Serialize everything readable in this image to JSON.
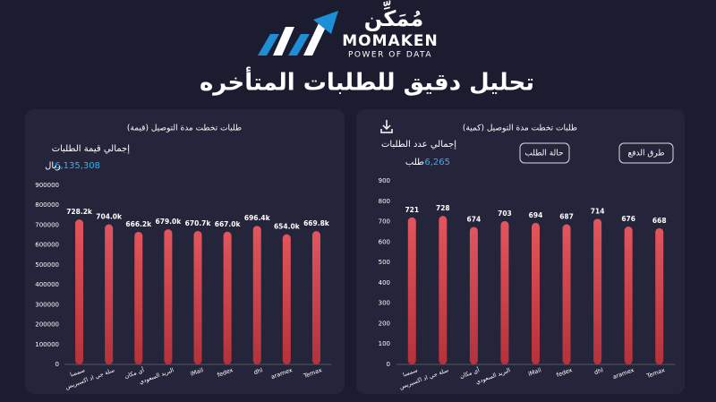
{
  "header": {
    "logo_arabic": "مُمَكِّن",
    "logo_name": "MOMAKEN",
    "logo_tagline": "POWER OF DATA",
    "title": "تحليل دقيق للطلبات المتأخره"
  },
  "chart_data": [
    {
      "type": "bar",
      "title": "طلبات تخطت مدة التوصيل (قيمة)",
      "kpi_label": "إجمالي قيمة الطلبات",
      "kpi_value": "6,135,308",
      "kpi_unit": "ريال",
      "categories": [
        "سمسا",
        "سلة جي اد اكسبريس",
        "أي مكان",
        "البريد السعودي",
        "iMail",
        "fedex",
        "dhl",
        "aramex",
        "Temax"
      ],
      "values": [
        728200,
        704000,
        666200,
        679000,
        670700,
        667000,
        696400,
        654000,
        669800
      ],
      "value_labels": [
        "728.2k",
        "704.0k",
        "666.2k",
        "679.0k",
        "670.7k",
        "667.0k",
        "696.4k",
        "654.0k",
        "669.8k"
      ],
      "color": "#d4454d",
      "ylim": [
        0,
        900000
      ],
      "yticks": [
        0,
        100000,
        200000,
        300000,
        400000,
        500000,
        600000,
        700000,
        800000,
        900000
      ],
      "grid": false
    },
    {
      "type": "bar",
      "title": "طلبات تخطت مدة التوصيل (كمية)",
      "kpi_label": "إجمالي عدد الطلبات",
      "kpi_value": "6,265",
      "kpi_unit": "طلب",
      "buttons": [
        "حالة الطلب",
        "طرق الدفع"
      ],
      "categories": [
        "سمسا",
        "سلة جي اد اكسبريس",
        "أي مكان",
        "البريد السعودي",
        "iMail",
        "fedex",
        "dhl",
        "aramex",
        "Temax"
      ],
      "values": [
        721,
        728,
        674,
        703,
        694,
        687,
        714,
        676,
        668
      ],
      "color": "#d4454d",
      "ylim": [
        0,
        900
      ],
      "yticks": [
        0,
        100,
        200,
        300,
        400,
        500,
        600,
        700,
        800,
        900
      ],
      "grid": false
    }
  ]
}
